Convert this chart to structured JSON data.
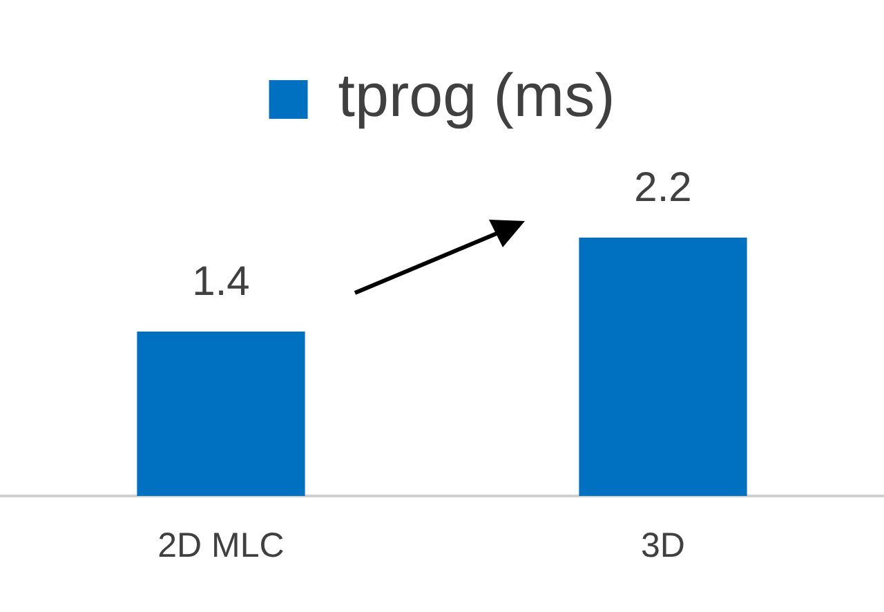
{
  "chart_data": {
    "type": "bar",
    "categories": [
      "2D MLC",
      "3D"
    ],
    "series": [
      {
        "name": "tprog (ms)",
        "color": "#0070c0",
        "values": [
          1.4,
          2.2
        ]
      }
    ],
    "tick_labels": "x",
    "data_labels": true,
    "legend": "top",
    "grid": false
  }
}
